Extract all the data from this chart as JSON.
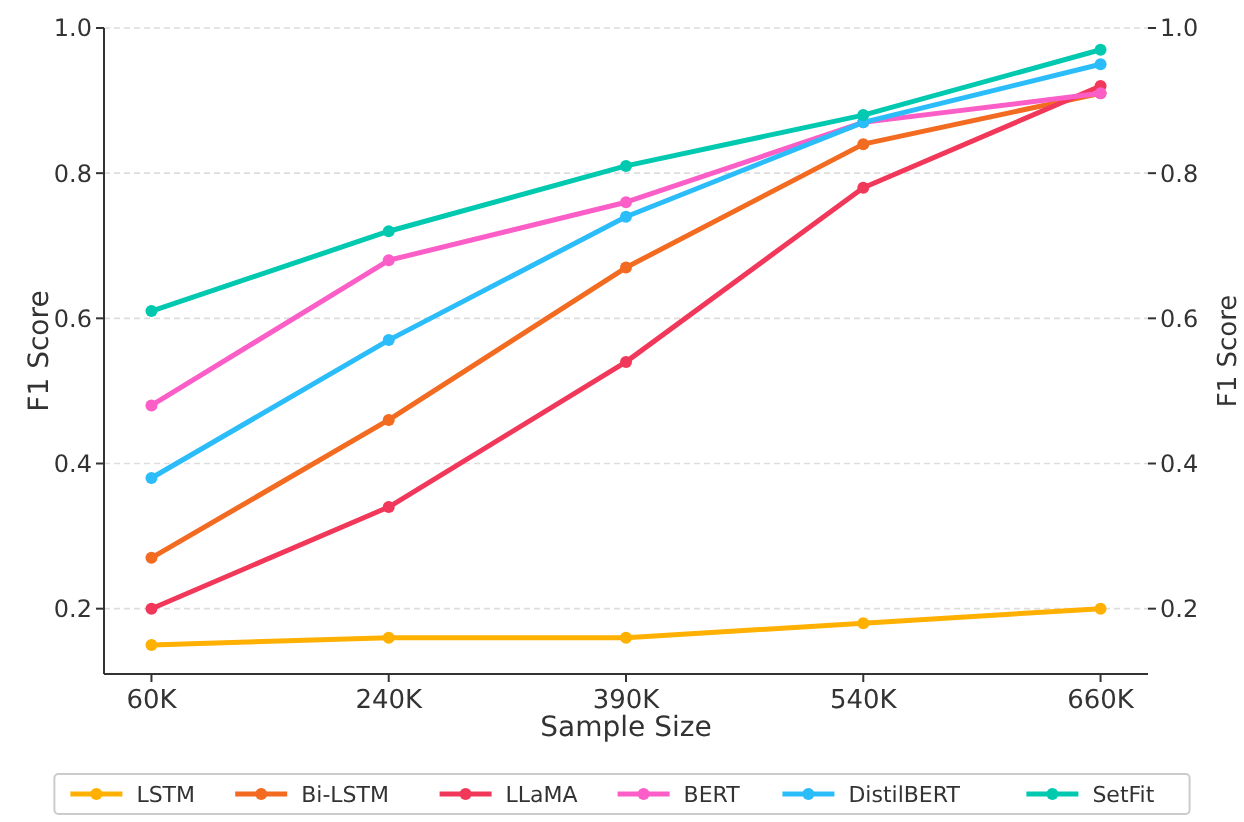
{
  "chart_data": {
    "type": "line",
    "xlabel": "Sample Size",
    "ylabel": "F1 Score",
    "y2label": "F1 Score",
    "categories": [
      "60K",
      "240K",
      "390K",
      "540K",
      "660K"
    ],
    "series": [
      {
        "name": "LSTM",
        "color": "#ffb000",
        "values": [
          0.15,
          0.16,
          0.16,
          0.18,
          0.2
        ]
      },
      {
        "name": "Bi-LSTM",
        "color": "#f26b21",
        "values": [
          0.27,
          0.46,
          0.67,
          0.84,
          0.91
        ]
      },
      {
        "name": "LLaMA",
        "color": "#f2385a",
        "values": [
          0.2,
          0.34,
          0.54,
          0.78,
          0.92
        ]
      },
      {
        "name": "BERT",
        "color": "#fc5ec8",
        "values": [
          0.48,
          0.68,
          0.76,
          0.87,
          0.91
        ]
      },
      {
        "name": "DistilBERT",
        "color": "#2bbcfa",
        "values": [
          0.38,
          0.57,
          0.74,
          0.87,
          0.95
        ]
      },
      {
        "name": "SetFit",
        "color": "#00c9b0",
        "values": [
          0.61,
          0.72,
          0.81,
          0.88,
          0.97
        ]
      }
    ],
    "ylim": [
      0.11,
      1.0
    ],
    "yticks": [
      0.2,
      0.4,
      0.6,
      0.8,
      {
        "value": 1,
        "label": "1.0"
      }
    ],
    "y2lim": [
      0.11,
      1.0
    ],
    "y2ticks": [
      0.2,
      0.4,
      0.6,
      0.8,
      {
        "value": 1,
        "label": "1.0"
      }
    ],
    "grid": "y",
    "legend": "bottom",
    "marker": "circle",
    "line_style": "solid"
  }
}
